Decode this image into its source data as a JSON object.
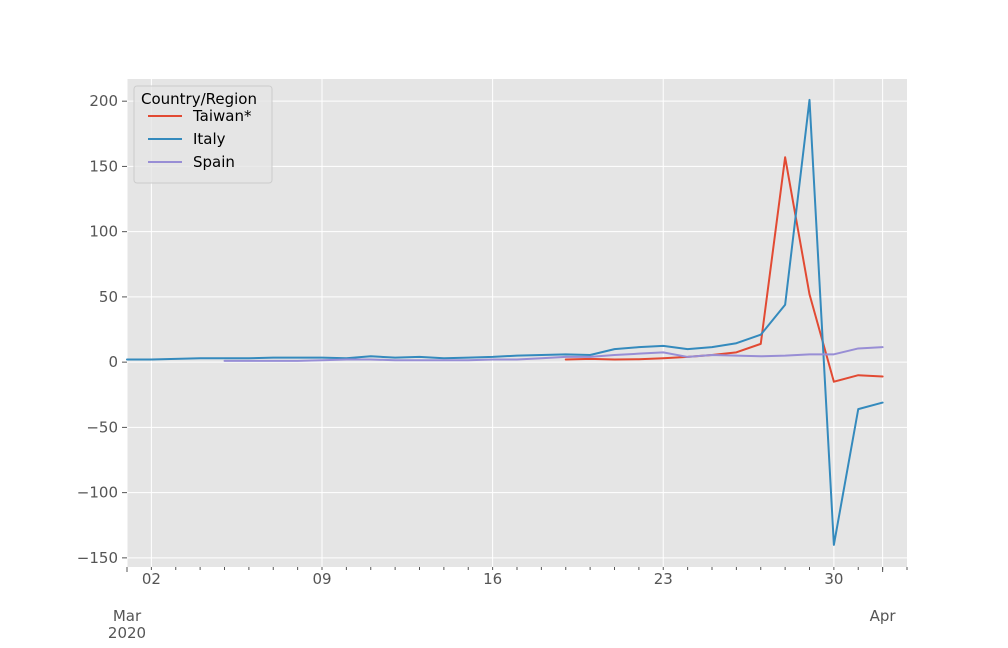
{
  "chart_data": {
    "type": "line",
    "x": [
      "2020-03-01",
      "2020-03-02",
      "2020-03-03",
      "2020-03-04",
      "2020-03-05",
      "2020-03-06",
      "2020-03-07",
      "2020-03-08",
      "2020-03-09",
      "2020-03-10",
      "2020-03-11",
      "2020-03-12",
      "2020-03-13",
      "2020-03-14",
      "2020-03-15",
      "2020-03-16",
      "2020-03-17",
      "2020-03-18",
      "2020-03-19",
      "2020-03-20",
      "2020-03-21",
      "2020-03-22",
      "2020-03-23",
      "2020-03-24",
      "2020-03-25",
      "2020-03-26",
      "2020-03-27",
      "2020-03-28",
      "2020-03-29",
      "2020-03-30",
      "2020-03-31",
      "2020-04-01"
    ],
    "series": [
      {
        "name": "Taiwan*",
        "color": "#E24A33",
        "values": [
          null,
          null,
          null,
          null,
          null,
          null,
          null,
          null,
          null,
          null,
          null,
          null,
          null,
          null,
          null,
          null,
          null,
          null,
          2,
          2.5,
          2,
          2.2,
          3,
          4,
          5.5,
          7.5,
          14,
          157,
          52,
          -15,
          -10,
          -11
        ]
      },
      {
        "name": "Italy",
        "color": "#348ABD",
        "values": [
          2,
          2,
          2.5,
          3,
          3,
          3,
          3.5,
          3.5,
          3.5,
          3,
          4.5,
          3.5,
          4,
          3,
          3.5,
          4,
          5,
          5.5,
          6,
          5.5,
          10,
          11.5,
          12.5,
          10,
          11.5,
          14.5,
          21,
          44,
          201,
          -140,
          -36,
          -31
        ]
      },
      {
        "name": "Spain",
        "color": "#988ED5",
        "values": [
          null,
          null,
          null,
          null,
          1,
          1,
          1,
          1,
          1.5,
          2,
          2,
          1.5,
          1.5,
          1.5,
          1.5,
          2,
          2,
          3,
          4,
          4,
          5.5,
          6.5,
          7.5,
          4,
          5.5,
          5,
          4.5,
          5,
          6,
          6,
          10.5,
          11.5
        ]
      }
    ],
    "x_ticks": [
      {
        "date": "2020-03-02",
        "label": "02"
      },
      {
        "date": "2020-03-09",
        "label": "09"
      },
      {
        "date": "2020-03-16",
        "label": "16"
      },
      {
        "date": "2020-03-23",
        "label": "23"
      },
      {
        "date": "2020-03-30",
        "label": "30"
      }
    ],
    "x_major": [
      {
        "date": "2020-03-01",
        "line1": "Mar",
        "line2": "2020"
      },
      {
        "date": "2020-04-01",
        "line1": "Apr",
        "line2": ""
      }
    ],
    "y_ticks": [
      200,
      150,
      100,
      50,
      0,
      -50,
      -100,
      -150
    ],
    "y_tick_labels": [
      "200",
      "150",
      "100",
      "50",
      "0",
      "−50",
      "−100",
      "−150"
    ],
    "xlim": [
      "2020-03-01",
      "2020-04-02"
    ],
    "ylim": [
      -157,
      217
    ],
    "grid": true,
    "legend": {
      "title": "Country/Region",
      "placement": "top-left"
    },
    "colors": {
      "background": "#E5E5E5",
      "grid": "#FFFFFF",
      "text": "#555555"
    }
  }
}
